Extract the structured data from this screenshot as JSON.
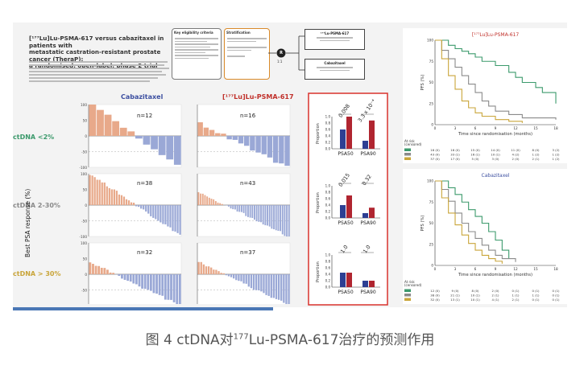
{
  "header": {
    "title_line1": "[¹⁷⁷Lu]Lu-PSMA-617 versus cabazitaxel in patients with",
    "title_line2": "metastatic castration-resistant prostate cancer (TheraP):",
    "title_line3": "a randomised, open-label, phase 2 trial"
  },
  "design": {
    "eligibility_title": "Key eligibility criteria",
    "stratification_title": "Stratification",
    "randomise_label": "R",
    "ratio_label": "1:1",
    "arm1_title": "¹⁷⁷Lu-PSMA-617",
    "arm2_title": "Cabazitaxel"
  },
  "columns": {
    "cabazitaxel": "Cabazitaxel",
    "lupsma": "[¹⁷⁷Lu]Lu-PSMA-617"
  },
  "rows": [
    {
      "label": "ctDNA <2%",
      "color": "#3c9a6c",
      "n_cab": "n=12",
      "n_lu": "n=16",
      "p1": "0.008",
      "p2": "3.3 x 10⁻⁴"
    },
    {
      "label": "ctDNA 2-30%",
      "color": "#8a8a8a",
      "n_cab": "n=38",
      "n_lu": "n=43",
      "p1": "0.015",
      "p2": "0.32"
    },
    {
      "label": "ctDNA > 30%",
      "color": "#c9a53a",
      "n_cab": "n=32",
      "n_lu": "n=37",
      "p1": "1.0",
      "p2": "1.0"
    }
  ],
  "waterfall": {
    "ylabel": "Best PSA response (%)",
    "ticks": [
      "100",
      "50",
      "0",
      "-50",
      "-100"
    ],
    "up_color": "#e8a98a",
    "down_color": "#9aa8d6",
    "axis_color": "#666666"
  },
  "proportion": {
    "ylabel": "Proportion",
    "ticks": [
      "1.0",
      "0.8",
      "0.6",
      "0.4",
      "0.2",
      "0.0"
    ],
    "categories": [
      "PSA50",
      "PSA90"
    ],
    "blue": "#2d3f93",
    "red": "#b02530",
    "frame_color": "#d9332c"
  },
  "chart_data": [
    {
      "type": "bar",
      "title": "ctDNA <2%",
      "ylabel": "Proportion",
      "categories": [
        "PSA50",
        "PSA90"
      ],
      "series": [
        {
          "values": [
            0.6,
            0.25
          ]
        },
        {
          "values": [
            1.0,
            0.88
          ]
        }
      ],
      "ylim": [
        0,
        1.0
      ]
    },
    {
      "type": "bar",
      "title": "ctDNA 2-30%",
      "ylabel": "Proportion",
      "categories": [
        "PSA50",
        "PSA90"
      ],
      "series": [
        {
          "values": [
            0.4,
            0.15
          ]
        },
        {
          "values": [
            0.7,
            0.32
          ]
        }
      ],
      "ylim": [
        0,
        1.0
      ]
    },
    {
      "type": "bar",
      "title": "ctDNA > 30%",
      "ylabel": "Proportion",
      "categories": [
        "PSA50",
        "PSA90"
      ],
      "series": [
        {
          "values": [
            0.45,
            0.2
          ]
        },
        {
          "values": [
            0.45,
            0.2
          ]
        }
      ],
      "ylim": [
        0,
        1.0
      ]
    },
    {
      "type": "line",
      "title": "[¹⁷⁷Lu]Lu-PSMA-617",
      "xlabel": "Time since randomisation (months)",
      "ylabel": "PFS (%)",
      "x_ticks": [
        0,
        3,
        6,
        9,
        12,
        15,
        18
      ],
      "y_ticks": [
        0,
        25,
        50,
        75,
        100
      ],
      "series": [
        {
          "color": "#3c9a6c",
          "x": [
            0,
            2,
            3,
            4,
            5,
            6,
            7,
            9,
            11,
            12,
            13,
            15,
            16,
            18
          ],
          "y": [
            100,
            94,
            90,
            87,
            84,
            80,
            75,
            70,
            62,
            56,
            50,
            44,
            38,
            25
          ]
        },
        {
          "color": "#8a8a8a",
          "x": [
            0,
            1,
            2,
            3,
            4,
            5,
            6,
            7,
            8,
            9,
            11,
            13,
            18
          ],
          "y": [
            100,
            88,
            78,
            68,
            58,
            48,
            38,
            28,
            22,
            16,
            12,
            8,
            6
          ]
        },
        {
          "color": "#c9a53a",
          "x": [
            0,
            1,
            2,
            3,
            4,
            5,
            6,
            7,
            9,
            11,
            13
          ],
          "y": [
            100,
            78,
            58,
            42,
            28,
            20,
            14,
            10,
            6,
            4,
            2
          ]
        }
      ],
      "at_risk_label": "At risk\n(censored)",
      "at_risk": [
        [
          "16 (0)",
          "16 (0)",
          "15 (0)",
          "14 (0)",
          "11 (0)",
          "8 (0)",
          "3 (2)"
        ],
        [
          "43 (0)",
          "33 (1)",
          "16 (1)",
          "10 (1)",
          "4 (2)",
          "1 (2)",
          "1 (2)"
        ],
        [
          "37 (0)",
          "17 (0)",
          "5 (0)",
          "3 (0)",
          "2 (0)",
          "2 (1)",
          "1 (2)"
        ]
      ]
    },
    {
      "type": "line",
      "title": "Cabazitaxel",
      "xlabel": "Time since randomisation (months)",
      "ylabel": "PFS (%)",
      "x_ticks": [
        0,
        3,
        6,
        9,
        12,
        15,
        18
      ],
      "y_ticks": [
        0,
        25,
        50,
        75,
        100
      ],
      "series": [
        {
          "color": "#3c9a6c",
          "x": [
            0,
            2,
            3,
            4,
            5,
            6,
            7,
            8,
            9,
            10,
            11
          ],
          "y": [
            100,
            92,
            84,
            75,
            66,
            58,
            50,
            40,
            30,
            18,
            8
          ]
        },
        {
          "color": "#8a8a8a",
          "x": [
            0,
            1,
            2,
            3,
            4,
            5,
            6,
            7,
            8,
            9,
            10,
            12
          ],
          "y": [
            100,
            90,
            76,
            62,
            50,
            40,
            32,
            24,
            18,
            12,
            8,
            4
          ]
        },
        {
          "color": "#c9a53a",
          "x": [
            0,
            1,
            2,
            3,
            4,
            5,
            6,
            7,
            8,
            9,
            10
          ],
          "y": [
            100,
            80,
            62,
            48,
            36,
            26,
            18,
            12,
            8,
            5,
            2
          ]
        }
      ],
      "at_risk_label": "At risk\n(censored)",
      "at_risk": [
        [
          "12 (0)",
          "9 (0)",
          "8 (0)",
          "2 (0)",
          "0 (1)",
          "0 (1)",
          "0 (1)"
        ],
        [
          "38 (0)",
          "21 (1)",
          "10 (1)",
          "2 (1)",
          "1 (1)",
          "1 (1)",
          "0 (1)"
        ],
        [
          "32 (0)",
          "13 (1)",
          "10 (1)",
          "4 (1)",
          "2 (1)",
          "0 (1)",
          "0 (1)"
        ]
      ]
    }
  ],
  "caption": {
    "prefix": "图 4 ctDNA对",
    "sup": "177",
    "suffix": "Lu-PSMA-617治疗的预测作用"
  }
}
